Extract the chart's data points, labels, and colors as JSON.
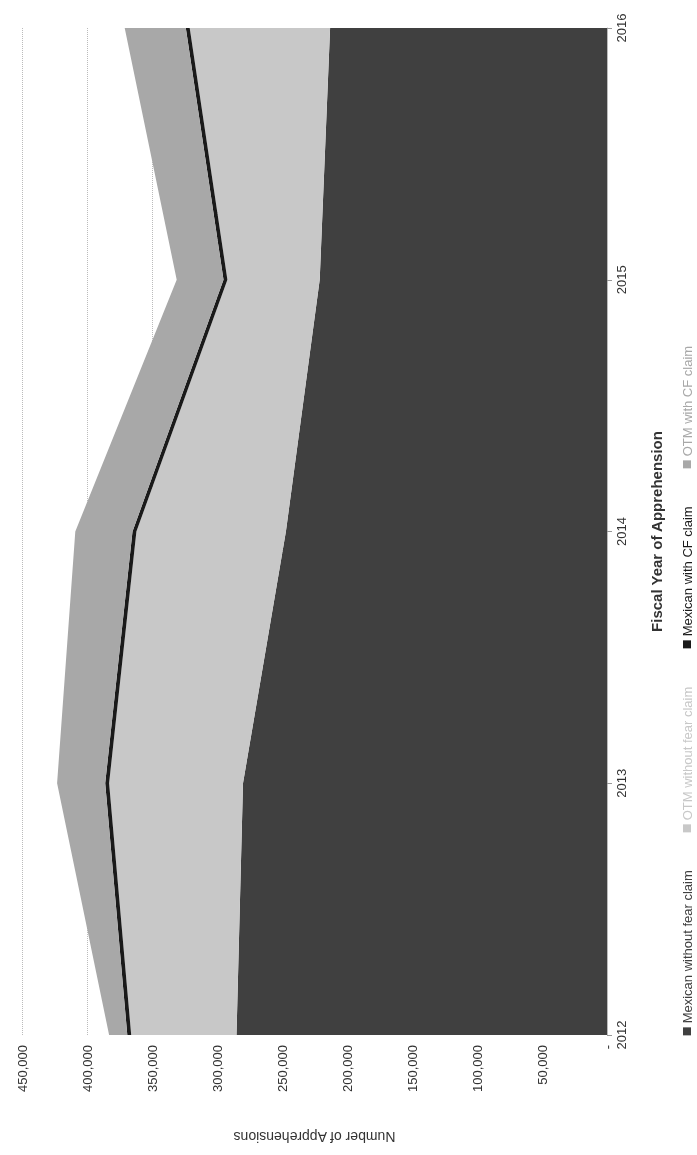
{
  "chart_data": {
    "type": "area",
    "stacked": true,
    "orientation": "horizontal",
    "xlabel": "Number of Apprehensions",
    "ylabel": "Fiscal Year of Apprehension",
    "categories": [
      "2016",
      "2015",
      "2014",
      "2013",
      "2012"
    ],
    "series": [
      {
        "name": "Mexican without fear claim",
        "color": "#404040",
        "values": [
          213000,
          221000,
          247000,
          280000,
          285000
        ]
      },
      {
        "name": "OTM without fear claim",
        "color": "#c8c8c8",
        "values": [
          108000,
          71000,
          115000,
          103000,
          81000
        ]
      },
      {
        "name": "Mexican with CF claim",
        "color": "#1a1a1a",
        "values": [
          3000,
          3000,
          3000,
          3000,
          3000
        ]
      },
      {
        "name": "OTM with CF claim",
        "color": "#a8a8a8",
        "values": [
          47000,
          36000,
          44000,
          37000,
          14000
        ]
      }
    ],
    "xlim": [
      450000,
      0
    ],
    "xticks": [
      {
        "value": 0,
        "label": "-"
      },
      {
        "value": 50000,
        "label": "50,000"
      },
      {
        "value": 100000,
        "label": "100,000"
      },
      {
        "value": 150000,
        "label": "150,000"
      },
      {
        "value": 200000,
        "label": "200,000"
      },
      {
        "value": 250000,
        "label": "250,000"
      },
      {
        "value": 300000,
        "label": "300,000"
      },
      {
        "value": 350000,
        "label": "350,000"
      },
      {
        "value": 400000,
        "label": "400,000"
      },
      {
        "value": 450000,
        "label": "450,000"
      }
    ],
    "grid": "x",
    "legend": "right"
  }
}
